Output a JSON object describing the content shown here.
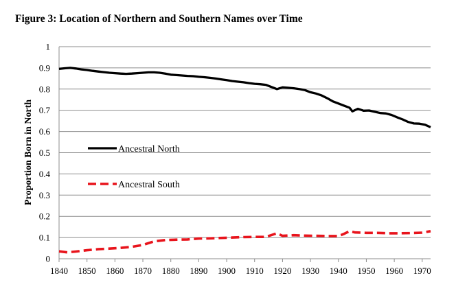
{
  "figure_title": "Figure 3: Location of Northern and Southern Names over Time",
  "colors": {
    "north": "#000000",
    "south": "#e8141c",
    "grid": "#8c8c8c"
  },
  "chart_data": {
    "type": "line",
    "title": "Figure 3: Location of Northern and Southern Names over Time",
    "xlabel": "",
    "ylabel": "Proportion Born in North",
    "xlim": [
      1840,
      1973
    ],
    "ylim": [
      0,
      1
    ],
    "x_ticks": [
      1840,
      1850,
      1860,
      1870,
      1880,
      1890,
      1900,
      1910,
      1920,
      1930,
      1940,
      1950,
      1960,
      1970
    ],
    "y_ticks": [
      "0",
      "0.1",
      "0.2",
      "0.3",
      "0.4",
      "0.5",
      "0.6",
      "0.7",
      "0.8",
      "0.9",
      "1"
    ],
    "grid": "horizontal",
    "legend_position": "inside-left",
    "series": [
      {
        "name": "Ancestral North",
        "style": "solid",
        "points": [
          [
            1840,
            0.895
          ],
          [
            1842,
            0.898
          ],
          [
            1844,
            0.9
          ],
          [
            1846,
            0.897
          ],
          [
            1848,
            0.893
          ],
          [
            1850,
            0.89
          ],
          [
            1852,
            0.886
          ],
          [
            1854,
            0.883
          ],
          [
            1856,
            0.88
          ],
          [
            1858,
            0.877
          ],
          [
            1860,
            0.875
          ],
          [
            1862,
            0.873
          ],
          [
            1864,
            0.872
          ],
          [
            1866,
            0.873
          ],
          [
            1868,
            0.875
          ],
          [
            1870,
            0.877
          ],
          [
            1872,
            0.879
          ],
          [
            1874,
            0.879
          ],
          [
            1876,
            0.877
          ],
          [
            1878,
            0.873
          ],
          [
            1880,
            0.868
          ],
          [
            1882,
            0.866
          ],
          [
            1884,
            0.864
          ],
          [
            1886,
            0.862
          ],
          [
            1888,
            0.861
          ],
          [
            1890,
            0.858
          ],
          [
            1892,
            0.856
          ],
          [
            1894,
            0.853
          ],
          [
            1896,
            0.85
          ],
          [
            1898,
            0.846
          ],
          [
            1900,
            0.842
          ],
          [
            1902,
            0.838
          ],
          [
            1904,
            0.835
          ],
          [
            1906,
            0.832
          ],
          [
            1908,
            0.828
          ],
          [
            1910,
            0.825
          ],
          [
            1912,
            0.823
          ],
          [
            1914,
            0.82
          ],
          [
            1916,
            0.81
          ],
          [
            1918,
            0.8
          ],
          [
            1920,
            0.808
          ],
          [
            1922,
            0.806
          ],
          [
            1924,
            0.804
          ],
          [
            1926,
            0.8
          ],
          [
            1928,
            0.795
          ],
          [
            1930,
            0.785
          ],
          [
            1932,
            0.779
          ],
          [
            1934,
            0.77
          ],
          [
            1936,
            0.757
          ],
          [
            1938,
            0.742
          ],
          [
            1940,
            0.732
          ],
          [
            1942,
            0.722
          ],
          [
            1944,
            0.712
          ],
          [
            1945,
            0.695
          ],
          [
            1947,
            0.707
          ],
          [
            1949,
            0.698
          ],
          [
            1951,
            0.699
          ],
          [
            1953,
            0.693
          ],
          [
            1955,
            0.687
          ],
          [
            1957,
            0.685
          ],
          [
            1959,
            0.678
          ],
          [
            1961,
            0.667
          ],
          [
            1963,
            0.657
          ],
          [
            1965,
            0.645
          ],
          [
            1967,
            0.638
          ],
          [
            1969,
            0.637
          ],
          [
            1971,
            0.632
          ],
          [
            1973,
            0.62
          ]
        ]
      },
      {
        "name": "Ancestral South",
        "style": "dashed",
        "points": [
          [
            1840,
            0.035
          ],
          [
            1843,
            0.03
          ],
          [
            1846,
            0.034
          ],
          [
            1850,
            0.04
          ],
          [
            1854,
            0.045
          ],
          [
            1858,
            0.048
          ],
          [
            1862,
            0.051
          ],
          [
            1866,
            0.056
          ],
          [
            1870,
            0.065
          ],
          [
            1874,
            0.082
          ],
          [
            1878,
            0.088
          ],
          [
            1882,
            0.09
          ],
          [
            1886,
            0.091
          ],
          [
            1890,
            0.095
          ],
          [
            1894,
            0.096
          ],
          [
            1898,
            0.098
          ],
          [
            1902,
            0.1
          ],
          [
            1906,
            0.102
          ],
          [
            1910,
            0.103
          ],
          [
            1914,
            0.103
          ],
          [
            1918,
            0.12
          ],
          [
            1920,
            0.108
          ],
          [
            1924,
            0.111
          ],
          [
            1928,
            0.109
          ],
          [
            1932,
            0.108
          ],
          [
            1936,
            0.107
          ],
          [
            1940,
            0.107
          ],
          [
            1942,
            0.117
          ],
          [
            1944,
            0.13
          ],
          [
            1946,
            0.124
          ],
          [
            1950,
            0.122
          ],
          [
            1954,
            0.122
          ],
          [
            1958,
            0.12
          ],
          [
            1962,
            0.12
          ],
          [
            1966,
            0.121
          ],
          [
            1970,
            0.123
          ],
          [
            1973,
            0.13
          ]
        ]
      }
    ]
  }
}
